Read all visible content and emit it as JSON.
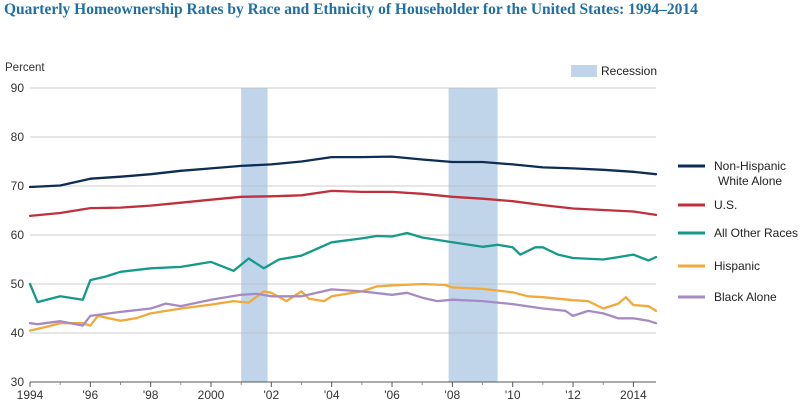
{
  "chart_data": {
    "type": "line",
    "title": "Quarterly Homeownership Rates by Race and Ethnicity of Householder for the United States: 1994–2014",
    "ylabel": "Percent",
    "xlabel": "",
    "ylim": [
      30,
      90
    ],
    "y_ticks": [
      "30",
      "40",
      "50",
      "60",
      "70",
      "80",
      "90"
    ],
    "x_ticks": [
      {
        "x": 1994,
        "label": "1994"
      },
      {
        "x": 1996,
        "label": "'96"
      },
      {
        "x": 1998,
        "label": "'98"
      },
      {
        "x": 2000,
        "label": "2000"
      },
      {
        "x": 2002,
        "label": "'02"
      },
      {
        "x": 2004,
        "label": "'04"
      },
      {
        "x": 2006,
        "label": "'06"
      },
      {
        "x": 2008,
        "label": "'08"
      },
      {
        "x": 2010,
        "label": "'10"
      },
      {
        "x": 2012,
        "label": "'12"
      },
      {
        "x": 2014,
        "label": "2014"
      }
    ],
    "xlim": [
      1994,
      2014.75
    ],
    "grid": true,
    "legend_position": "right",
    "recession_label": "Recession",
    "recessions": [
      [
        2001.0,
        2001.875
      ],
      [
        2007.875,
        2009.5
      ]
    ],
    "series": [
      {
        "name": "Non-Hispanic White Alone",
        "color": "#0e2d54",
        "points": [
          [
            1994,
            69.8
          ],
          [
            1995,
            70.1
          ],
          [
            1996,
            71.5
          ],
          [
            1997,
            71.9
          ],
          [
            1998,
            72.4
          ],
          [
            1999,
            73.1
          ],
          [
            2000,
            73.6
          ],
          [
            2001,
            74.1
          ],
          [
            2002,
            74.4
          ],
          [
            2003,
            75.0
          ],
          [
            2004,
            75.9
          ],
          [
            2005,
            75.9
          ],
          [
            2006,
            76.0
          ],
          [
            2007,
            75.4
          ],
          [
            2008,
            74.9
          ],
          [
            2009,
            74.9
          ],
          [
            2010,
            74.4
          ],
          [
            2011,
            73.8
          ],
          [
            2012,
            73.6
          ],
          [
            2013,
            73.3
          ],
          [
            2014,
            72.9
          ],
          [
            2014.75,
            72.4
          ]
        ]
      },
      {
        "name": "U.S.",
        "color": "#c0303c",
        "points": [
          [
            1994,
            63.9
          ],
          [
            1995,
            64.5
          ],
          [
            1996,
            65.5
          ],
          [
            1997,
            65.6
          ],
          [
            1998,
            66.0
          ],
          [
            1999,
            66.6
          ],
          [
            2000,
            67.2
          ],
          [
            2001,
            67.8
          ],
          [
            2002,
            67.9
          ],
          [
            2003,
            68.1
          ],
          [
            2004,
            69.0
          ],
          [
            2005,
            68.8
          ],
          [
            2006,
            68.8
          ],
          [
            2007,
            68.4
          ],
          [
            2008,
            67.8
          ],
          [
            2009,
            67.4
          ],
          [
            2010,
            66.9
          ],
          [
            2011,
            66.1
          ],
          [
            2012,
            65.4
          ],
          [
            2013,
            65.1
          ],
          [
            2014,
            64.8
          ],
          [
            2014.75,
            64.1
          ]
        ]
      },
      {
        "name": "All Other Races",
        "color": "#159a89",
        "points": [
          [
            1994,
            50.0
          ],
          [
            1994.25,
            46.3
          ],
          [
            1995,
            47.5
          ],
          [
            1995.75,
            46.8
          ],
          [
            1996,
            50.8
          ],
          [
            1996.5,
            51.5
          ],
          [
            1997,
            52.5
          ],
          [
            1998,
            53.2
          ],
          [
            1999,
            53.5
          ],
          [
            2000,
            54.5
          ],
          [
            2000.75,
            52.7
          ],
          [
            2001.25,
            55.2
          ],
          [
            2001.75,
            53.2
          ],
          [
            2002.25,
            55.0
          ],
          [
            2003,
            55.8
          ],
          [
            2004,
            58.5
          ],
          [
            2005,
            59.3
          ],
          [
            2005.5,
            59.8
          ],
          [
            2006,
            59.7
          ],
          [
            2006.5,
            60.4
          ],
          [
            2007,
            59.5
          ],
          [
            2008,
            58.5
          ],
          [
            2009,
            57.6
          ],
          [
            2009.5,
            58.0
          ],
          [
            2010,
            57.5
          ],
          [
            2010.25,
            56.0
          ],
          [
            2010.75,
            57.5
          ],
          [
            2011,
            57.5
          ],
          [
            2011.5,
            56.0
          ],
          [
            2012,
            55.3
          ],
          [
            2013,
            55.0
          ],
          [
            2013.5,
            55.5
          ],
          [
            2014,
            56.0
          ],
          [
            2014.5,
            54.8
          ],
          [
            2014.75,
            55.5
          ]
        ]
      },
      {
        "name": "Hispanic",
        "color": "#f2a93b",
        "points": [
          [
            1994,
            40.5
          ],
          [
            1994.5,
            41.2
          ],
          [
            1995,
            42.0
          ],
          [
            1995.75,
            42.0
          ],
          [
            1996,
            41.5
          ],
          [
            1996.25,
            43.5
          ],
          [
            1997,
            42.5
          ],
          [
            1997.5,
            43.0
          ],
          [
            1998,
            44.0
          ],
          [
            1999,
            45.0
          ],
          [
            2000,
            45.8
          ],
          [
            2000.75,
            46.5
          ],
          [
            2001.25,
            46.2
          ],
          [
            2001.75,
            48.5
          ],
          [
            2002,
            48.2
          ],
          [
            2002.5,
            46.5
          ],
          [
            2003,
            48.5
          ],
          [
            2003.25,
            47.0
          ],
          [
            2003.75,
            46.5
          ],
          [
            2004,
            47.5
          ],
          [
            2004.5,
            48.0
          ],
          [
            2005,
            48.5
          ],
          [
            2005.5,
            49.5
          ],
          [
            2006,
            49.7
          ],
          [
            2007,
            50.0
          ],
          [
            2007.75,
            49.8
          ],
          [
            2008,
            49.3
          ],
          [
            2009,
            49.0
          ],
          [
            2010,
            48.3
          ],
          [
            2010.5,
            47.5
          ],
          [
            2011,
            47.3
          ],
          [
            2011.5,
            47.0
          ],
          [
            2012,
            46.7
          ],
          [
            2012.5,
            46.5
          ],
          [
            2013,
            45.0
          ],
          [
            2013.5,
            46.0
          ],
          [
            2013.75,
            47.3
          ],
          [
            2014,
            45.7
          ],
          [
            2014.5,
            45.5
          ],
          [
            2014.75,
            44.5
          ]
        ]
      },
      {
        "name": "Black Alone",
        "color": "#a58bc4",
        "points": [
          [
            1994,
            42.0
          ],
          [
            1994.25,
            41.8
          ],
          [
            1995,
            42.4
          ],
          [
            1995.75,
            41.5
          ],
          [
            1996,
            43.5
          ],
          [
            1997,
            44.3
          ],
          [
            1998,
            45.0
          ],
          [
            1998.5,
            46.0
          ],
          [
            1999,
            45.5
          ],
          [
            2000,
            46.8
          ],
          [
            2001,
            47.8
          ],
          [
            2001.5,
            48.0
          ],
          [
            2002,
            47.5
          ],
          [
            2003,
            47.5
          ],
          [
            2004,
            48.9
          ],
          [
            2005,
            48.5
          ],
          [
            2006,
            47.8
          ],
          [
            2006.5,
            48.2
          ],
          [
            2007,
            47.2
          ],
          [
            2007.5,
            46.5
          ],
          [
            2008,
            46.8
          ],
          [
            2009,
            46.5
          ],
          [
            2010,
            45.9
          ],
          [
            2011,
            45.0
          ],
          [
            2011.75,
            44.5
          ],
          [
            2012,
            43.5
          ],
          [
            2012.5,
            44.5
          ],
          [
            2013,
            44.0
          ],
          [
            2013.5,
            43.0
          ],
          [
            2014,
            43.0
          ],
          [
            2014.5,
            42.5
          ],
          [
            2014.75,
            42.0
          ]
        ]
      }
    ]
  }
}
